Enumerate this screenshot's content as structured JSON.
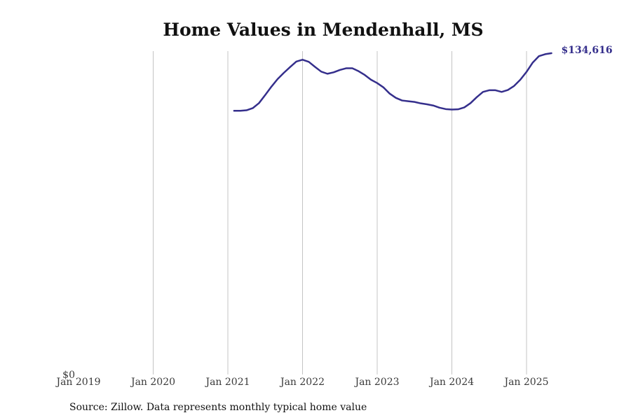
{
  "title": "Home Values in Mendenhall, MS",
  "source": "Source: Zillow. Data represents monthly typical home value",
  "colors": {
    "line": "#352f8c",
    "grid": "#c4c4c4",
    "text": "#3a3a3a"
  },
  "chart_data": {
    "type": "line",
    "title": "Home Values in Mendenhall, MS",
    "xlabel": "",
    "ylabel": "",
    "x_ticks": [
      "Jan 2019",
      "Jan 2020",
      "Jan 2021",
      "Jan 2022",
      "Jan 2023",
      "Jan 2024",
      "Jan 2025"
    ],
    "y_ticks": [
      "$0"
    ],
    "xlim": [
      "2019-01",
      "2025-06"
    ],
    "ylim": [
      0,
      134616
    ],
    "grid": "vertical",
    "end_label": "$134,616",
    "series": [
      {
        "x": [
          "2021-02",
          "2021-03",
          "2021-04",
          "2021-05",
          "2021-06",
          "2021-07",
          "2021-08",
          "2021-09",
          "2021-10",
          "2021-11",
          "2021-12",
          "2022-01",
          "2022-02",
          "2022-03",
          "2022-04",
          "2022-05",
          "2022-06",
          "2022-07",
          "2022-08",
          "2022-09",
          "2022-10",
          "2022-11",
          "2022-12",
          "2023-01",
          "2023-02",
          "2023-03",
          "2023-04",
          "2023-05",
          "2023-06",
          "2023-07",
          "2023-08",
          "2023-09",
          "2023-10",
          "2023-11",
          "2023-12",
          "2024-01",
          "2024-02",
          "2024-03",
          "2024-04",
          "2024-05",
          "2024-06",
          "2024-07",
          "2024-08",
          "2024-09",
          "2024-10",
          "2024-11",
          "2024-12",
          "2025-01",
          "2025-02",
          "2025-03",
          "2025-04",
          "2025-05"
        ],
        "y": [
          110500,
          110500,
          110700,
          111600,
          113700,
          117100,
          120600,
          123800,
          126400,
          128800,
          131100,
          131900,
          131000,
          128900,
          126900,
          126000,
          126600,
          127600,
          128300,
          128300,
          127100,
          125500,
          123500,
          122100,
          120300,
          117700,
          115900,
          114800,
          114500,
          114200,
          113600,
          113200,
          112700,
          111800,
          111200,
          111000,
          111100,
          111900,
          113700,
          116200,
          118400,
          119100,
          119100,
          118400,
          119200,
          120900,
          123500,
          126800,
          130700,
          133400,
          134200,
          134616
        ]
      }
    ]
  }
}
